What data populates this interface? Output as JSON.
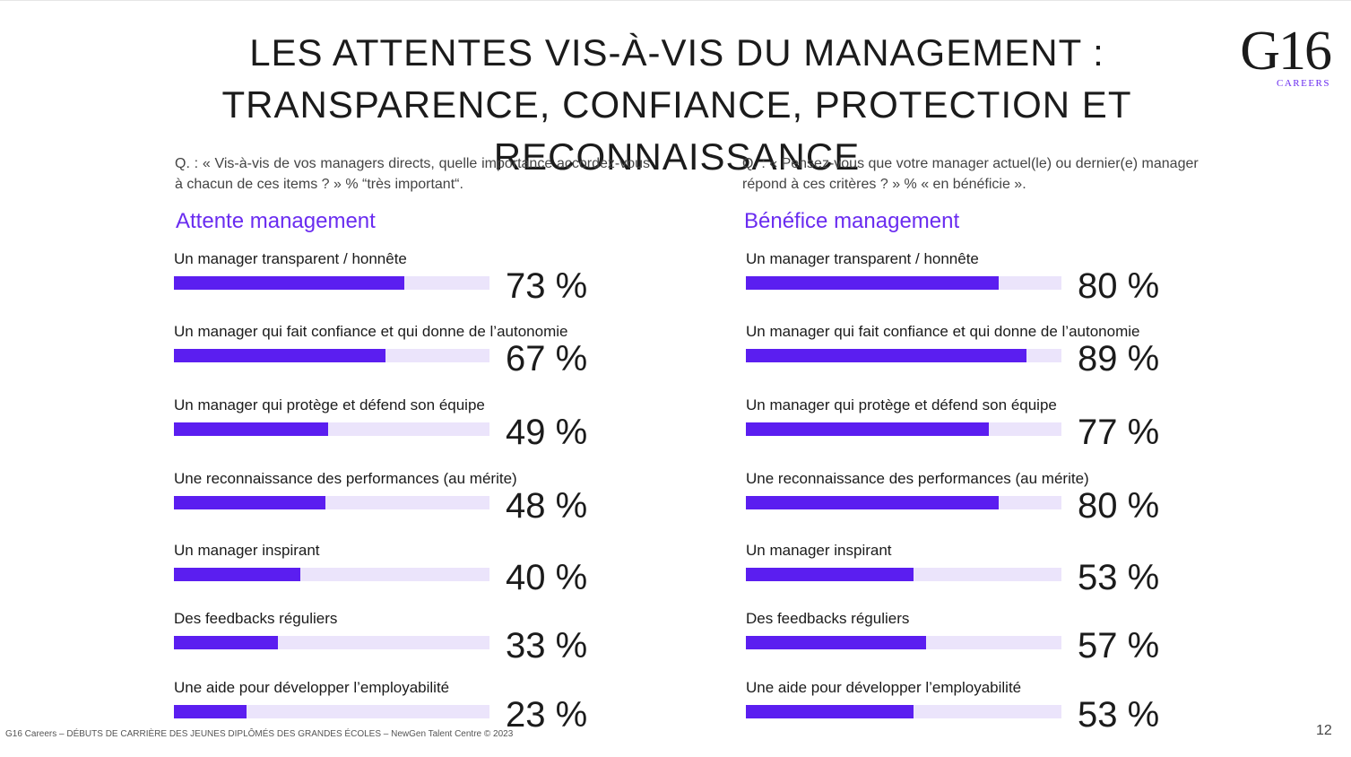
{
  "title": {
    "line1": "LES ATTENTES VIS-À-VIS DU MANAGEMENT :",
    "line2": "TRANSPARENCE, CONFIANCE, PROTECTION ET RECONNAISSANCE"
  },
  "logo": {
    "mark": "G16",
    "sub": "CAREERS"
  },
  "colors": {
    "accent": "#6a2cf0",
    "bar": "#5b1ef0",
    "track": "#ebe4fb"
  },
  "chart_data": [
    {
      "type": "bar",
      "orientation": "horizontal",
      "question": "Q. : « Vis-à-vis de vos managers directs, quelle importance accordez-vous à chacun de ces items ? » % “très important“.",
      "title": "Attente management",
      "categories": [
        "Un manager transparent / honnête",
        "Un manager qui fait confiance et qui donne de l’autonomie",
        "Un manager qui protège et défend son équipe",
        "Une reconnaissance des performances (au mérite)",
        "Un manager inspirant",
        "Des feedbacks réguliers",
        "Une aide pour développer l’employabilité"
      ],
      "values": [
        73,
        67,
        49,
        48,
        40,
        33,
        23
      ],
      "labels": [
        "73 %",
        "67 %",
        "49 %",
        "48 %",
        "40 %",
        "33 %",
        "23 %"
      ],
      "xlim": [
        0,
        100
      ],
      "grid": false
    },
    {
      "type": "bar",
      "orientation": "horizontal",
      "question": "Q. : « Pensez-vous que votre manager actuel(le) ou dernier(e) manager répond à ces critères ? » % « en bénéficie ».",
      "title": "Bénéfice management",
      "categories": [
        "Un manager transparent / honnête",
        "Un manager qui fait confiance et qui donne de l’autonomie",
        "Un manager qui protège et défend son équipe",
        "Une reconnaissance des performances (au mérite)",
        "Un manager inspirant",
        "Des feedbacks réguliers",
        "Une aide pour développer l’employabilité"
      ],
      "values": [
        80,
        89,
        77,
        80,
        53,
        57,
        53
      ],
      "labels": [
        "80 %",
        "89 %",
        "77 %",
        "80 %",
        "53 %",
        "57 %",
        "53 %"
      ],
      "xlim": [
        0,
        100
      ],
      "grid": false
    }
  ],
  "footer": "G16 Careers – DÉBUTS DE CARRIÈRE DES JEUNES DIPLÔMÉS DES GRANDES ÉCOLES – NewGen Talent Centre © 2023",
  "page_number": "12"
}
